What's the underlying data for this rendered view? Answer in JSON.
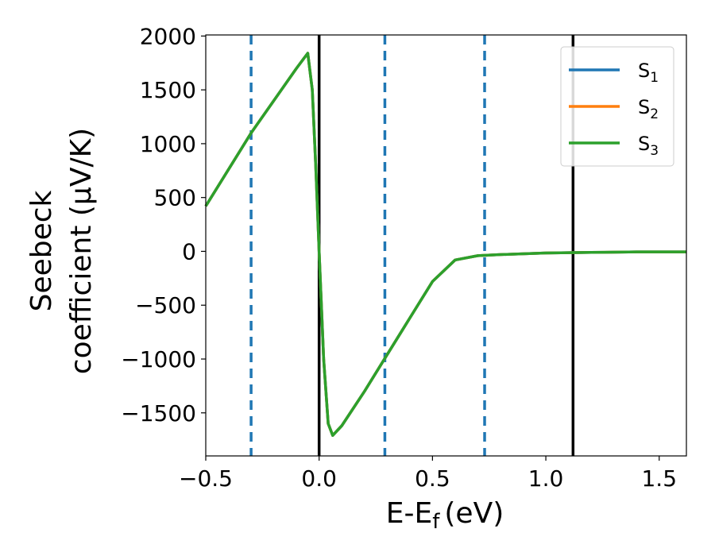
{
  "chart_data": {
    "type": "line",
    "xlabel": "E-E",
    "xlabel_sub": "f",
    "xlabel_unit": "(eV)",
    "ylabel_line1": "Seebeck",
    "ylabel_line2": "coefficient  (μV/K)",
    "xlim": [
      -0.5,
      1.62
    ],
    "ylim": [
      -1900,
      2010
    ],
    "xticks": [
      -0.5,
      0.0,
      0.5,
      1.0,
      1.5
    ],
    "xtick_labels": [
      "−0.5",
      "0.0",
      "0.5",
      "1.0",
      "1.5"
    ],
    "yticks": [
      2000,
      1500,
      1000,
      500,
      0,
      -500,
      -1000,
      -1500
    ],
    "ytick_labels": [
      "2000",
      "1500",
      "1000",
      "500",
      "0",
      "−500",
      "−1000",
      "−1500"
    ],
    "vlines_solid": [
      0.0,
      1.12
    ],
    "vlines_dashed": [
      -0.3,
      0.29,
      0.73
    ],
    "legend_position": "upper right",
    "series": [
      {
        "name": "S",
        "name_sub": "1",
        "color": "#1f77b4",
        "x": [
          -0.5,
          -0.3,
          -0.1,
          -0.05,
          -0.03,
          -0.015,
          0.0,
          0.02,
          0.04,
          0.06,
          0.1,
          0.2,
          0.3,
          0.4,
          0.5,
          0.6,
          0.7,
          0.8,
          1.0,
          1.2,
          1.4,
          1.62
        ],
        "y": [
          420,
          1100,
          1700,
          1840,
          1500,
          800,
          0,
          -1000,
          -1600,
          -1710,
          -1620,
          -1300,
          -960,
          -620,
          -280,
          -80,
          -40,
          -30,
          -15,
          -10,
          -5,
          -5
        ]
      },
      {
        "name": "S",
        "name_sub": "2",
        "color": "#ff7f0e",
        "x": [
          -0.5,
          -0.3,
          -0.1,
          -0.05,
          -0.03,
          -0.015,
          0.0,
          0.02,
          0.04,
          0.06,
          0.1,
          0.2,
          0.3,
          0.4,
          0.5,
          0.6,
          0.7,
          0.8,
          1.0,
          1.2,
          1.4,
          1.62
        ],
        "y": [
          420,
          1100,
          1700,
          1840,
          1500,
          800,
          0,
          -1000,
          -1600,
          -1710,
          -1620,
          -1300,
          -960,
          -620,
          -280,
          -80,
          -40,
          -30,
          -15,
          -10,
          -5,
          -5
        ]
      },
      {
        "name": "S",
        "name_sub": "3",
        "color": "#2ca02c",
        "x": [
          -0.5,
          -0.3,
          -0.1,
          -0.05,
          -0.03,
          -0.015,
          0.0,
          0.02,
          0.04,
          0.06,
          0.1,
          0.2,
          0.3,
          0.4,
          0.5,
          0.6,
          0.7,
          0.8,
          1.0,
          1.2,
          1.4,
          1.62
        ],
        "y": [
          420,
          1100,
          1700,
          1840,
          1500,
          800,
          0,
          -1000,
          -1600,
          -1710,
          -1620,
          -1300,
          -960,
          -620,
          -280,
          -80,
          -40,
          -30,
          -15,
          -10,
          -5,
          -5
        ]
      }
    ]
  }
}
